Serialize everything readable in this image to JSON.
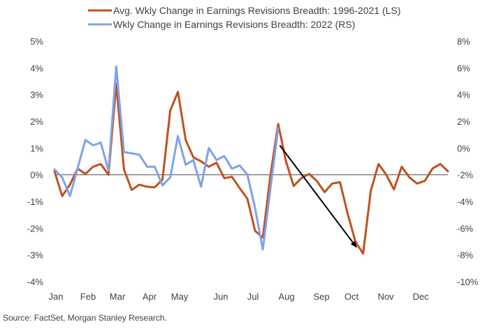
{
  "chart_data": {
    "type": "line",
    "title": "",
    "source": "Source: FactSet, Morgan Stanley Research.",
    "x_categories": [
      "Jan",
      "Feb",
      "Mar",
      "Apr",
      "May",
      "Jun",
      "Jul",
      "Aug",
      "Sep",
      "Oct",
      "Nov",
      "Dec"
    ],
    "x_unit": "week of year (0-51)",
    "left_axis": {
      "label": "",
      "range": [
        -4,
        5
      ],
      "ticks": [
        "5%",
        "4%",
        "3%",
        "2%",
        "1%",
        "0%",
        "-1%",
        "-2%",
        "-3%",
        "-4%"
      ],
      "tick_values": [
        5,
        4,
        3,
        2,
        1,
        0,
        -1,
        -2,
        -3,
        -4
      ]
    },
    "right_axis": {
      "label": "",
      "range": [
        -10,
        8
      ],
      "ticks": [
        "8%",
        "6%",
        "4%",
        "2%",
        "0%",
        "-2%",
        "-4%",
        "-6%",
        "-8%",
        "-10%"
      ],
      "tick_values": [
        8,
        6,
        4,
        2,
        0,
        -2,
        -4,
        -6,
        -8,
        -10
      ]
    },
    "legend_position": "top-center",
    "zero_line": true,
    "series": [
      {
        "name": "Avg. Wkly Change in Earnings Revisions Breadth: 1996-2021 (LS)",
        "axis": "left",
        "color": "#C0501F",
        "values": [
          0.13,
          -0.8,
          -0.37,
          0.23,
          0.03,
          0.3,
          0.4,
          0.0,
          3.4,
          0.2,
          -0.57,
          -0.37,
          -0.45,
          -0.47,
          -0.18,
          2.4,
          3.1,
          1.3,
          0.65,
          0.5,
          0.3,
          0.45,
          -0.13,
          -0.08,
          -0.5,
          -0.9,
          -2.1,
          -2.35,
          0.0,
          1.9,
          0.5,
          -0.42,
          -0.13,
          0.03,
          -0.23,
          -0.65,
          -0.33,
          -0.28,
          -1.46,
          -2.5,
          -2.95,
          -0.6,
          0.4,
          0.0,
          -0.55,
          0.3,
          -0.1,
          -0.33,
          -0.23,
          0.23,
          0.4,
          0.13
        ]
      },
      {
        "name": "Wkly Change in Earnings Revisions Breadth: 2022 (RS)",
        "axis": "right",
        "color": "#7FA2E8",
        "values": [
          -1.6,
          -2.2,
          -3.6,
          -1.5,
          0.6,
          0.2,
          0.4,
          -1.7,
          6.1,
          -0.3,
          -0.4,
          -0.5,
          -1.4,
          -1.4,
          -2.8,
          -2.2,
          0.9,
          -1.25,
          -0.9,
          -2.9,
          0.0,
          -0.9,
          -0.6,
          -1.55,
          -1.3,
          -2.0,
          -4.5,
          -7.6,
          -3.0,
          1.5
        ]
      }
    ],
    "annotations": [
      {
        "type": "arrow",
        "color": "#000000",
        "from": {
          "week": 29.2,
          "left_value": 1.1
        },
        "to": {
          "week": 39.1,
          "left_value": -2.7
        }
      }
    ]
  }
}
